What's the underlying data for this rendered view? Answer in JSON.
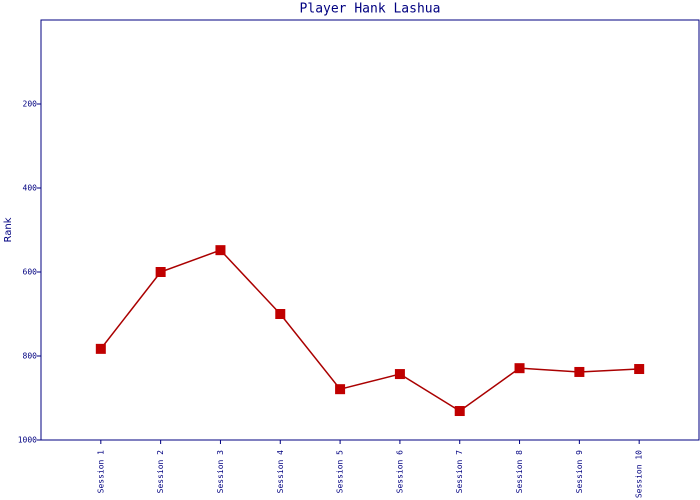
{
  "chart_data": {
    "type": "line",
    "title": "Player Hank Lashua",
    "y_label": "Rank",
    "categories": [
      "Session 1",
      "Session 2",
      "Session 3",
      "Session 4",
      "Session 5",
      "Session 6",
      "Session 7",
      "Session 8",
      "Session 9",
      "Session 10"
    ],
    "series": [
      {
        "name": "Rank",
        "color": "#aa0000",
        "marker_color": "#c00000",
        "values": [
          783,
          600,
          548,
          700,
          879,
          843,
          931,
          829,
          838,
          831
        ]
      }
    ],
    "ylim": [
      0,
      1000
    ],
    "yticks": [
      200,
      400,
      600,
      800,
      1000
    ],
    "y_inverted": true,
    "axis_color": "#000080",
    "grid": false
  }
}
